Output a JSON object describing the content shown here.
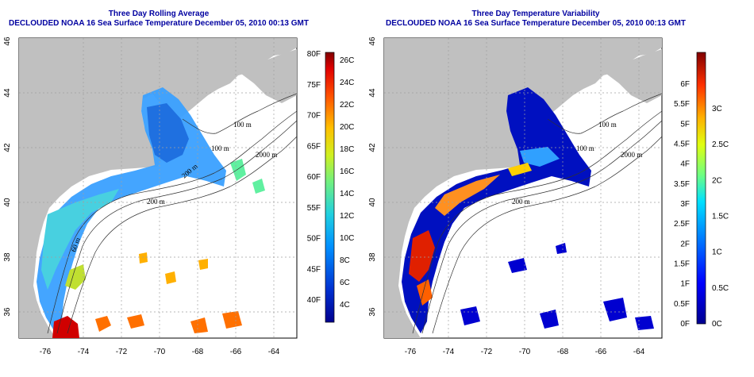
{
  "left_panel": {
    "title_line1": "Three Day Rolling Average",
    "title_line2": "DECLOUDED NOAA 16 Sea Surface Temperature December 05, 2010 00:13 GMT",
    "lon_ticks": [
      "-76",
      "-74",
      "-72",
      "-70",
      "-68",
      "-66",
      "-64"
    ],
    "lat_ticks": [
      "46",
      "44",
      "42",
      "40",
      "38",
      "36"
    ],
    "contour_labels": [
      "100 m",
      "100 m",
      "2000 m",
      "200 m",
      "60 m",
      "200 m"
    ],
    "colorbar_f": [
      "80F",
      "75F",
      "70F",
      "65F",
      "60F",
      "55F",
      "50F",
      "45F",
      "40F"
    ],
    "colorbar_c": [
      "26C",
      "24C",
      "22C",
      "20C",
      "18C",
      "16C",
      "14C",
      "12C",
      "10C",
      "8C",
      "6C",
      "4C"
    ]
  },
  "right_panel": {
    "title_line1": "Three Day Temperature Variability",
    "title_line2": "DECLOUDED NOAA 16 Sea Surface Temperature December 05, 2010 00:13 GMT",
    "lon_ticks": [
      "-76",
      "-74",
      "-72",
      "-70",
      "-68",
      "-66",
      "-64"
    ],
    "lat_ticks": [
      "46",
      "44",
      "42",
      "40",
      "38",
      "36"
    ],
    "contour_labels": [
      "100 m",
      "100 m",
      "2000 m",
      "200 m"
    ],
    "colorbar_f": [
      "6F",
      "5.5F",
      "5F",
      "4.5F",
      "4F",
      "3.5F",
      "3F",
      "2.5F",
      "2F",
      "1.5F",
      "1F",
      "0.5F",
      "0F"
    ],
    "colorbar_c": [
      "3C",
      "2.5C",
      "2C",
      "1.5C",
      "1C",
      "0.5C",
      "0C"
    ]
  },
  "colors": {
    "land": "#c0c0c0",
    "title": "#0000a0",
    "grid": "#a0a0a0"
  }
}
